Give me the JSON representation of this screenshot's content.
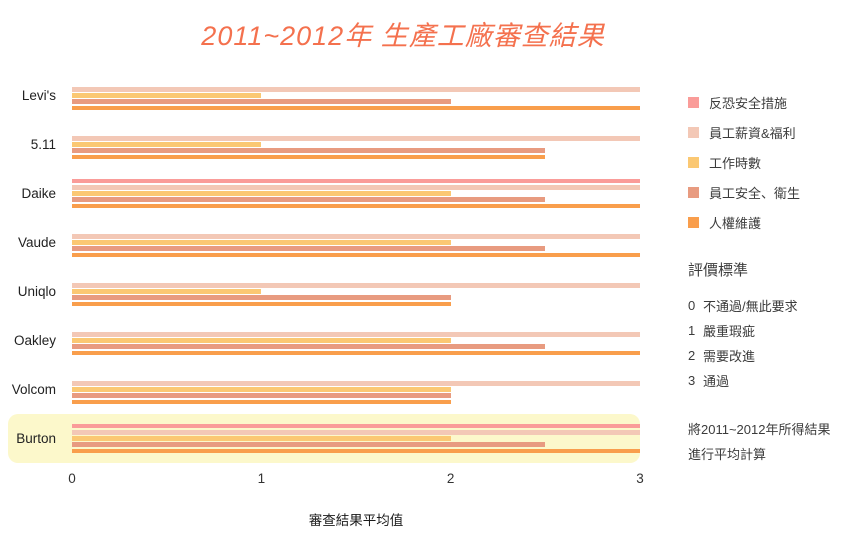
{
  "chart_data": {
    "type": "bar",
    "orientation": "horizontal",
    "title": "2011~2012年  生產工廠審查結果",
    "xlabel": "審查結果平均值",
    "xlim": [
      0,
      3
    ],
    "ticks": [
      "0",
      "1",
      "2",
      "3"
    ],
    "grid": false,
    "legend_position": "right",
    "categories": [
      "Levi's",
      "5.11",
      "Daike",
      "Vaude",
      "Uniqlo",
      "Oakley",
      "Volcom",
      "Burton"
    ],
    "highlighted_category": "Burton",
    "highlight_color": "#FCF8CB",
    "series": [
      {
        "name": "反恐安全措施",
        "color": "#FA9C99",
        "values": [
          0,
          0,
          3,
          0,
          0,
          0,
          0,
          3
        ]
      },
      {
        "name": "員工薪資&福利",
        "color": "#F3C8B6",
        "values": [
          3,
          3,
          3,
          3,
          3,
          3,
          3,
          3
        ]
      },
      {
        "name": "工作時數",
        "color": "#FBC873",
        "values": [
          1,
          1,
          2,
          2,
          1,
          2,
          2,
          2
        ]
      },
      {
        "name": "員工安全、衛生",
        "color": "#E89B80",
        "values": [
          2,
          2.5,
          2.5,
          2.5,
          2,
          2.5,
          2,
          2.5
        ]
      },
      {
        "name": "人權維護",
        "color": "#F99E4C",
        "values": [
          3,
          2.5,
          3,
          3,
          2,
          3,
          2,
          3
        ]
      }
    ]
  },
  "panel": {
    "criteria_title": "評價標準",
    "criteria": [
      {
        "score": "0",
        "label": "不通過/無此要求"
      },
      {
        "score": "1",
        "label": "嚴重瑕疵"
      },
      {
        "score": "2",
        "label": "需要改進"
      },
      {
        "score": "3",
        "label": "通過"
      }
    ],
    "note_lines": [
      "將2011~2012年所得結果",
      "進行平均計算"
    ]
  },
  "colors": {
    "title": "#F4714E",
    "text": "#3C3C3C"
  }
}
